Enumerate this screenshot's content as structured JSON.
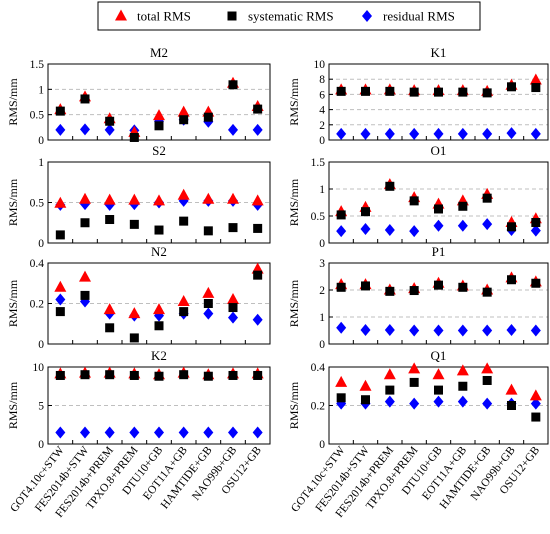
{
  "legend": {
    "placement": "top-center",
    "entries": [
      {
        "name": "total RMS",
        "marker": "triangle",
        "color": "#ff0000"
      },
      {
        "name": "systematic RMS",
        "marker": "square",
        "color": "#000000"
      },
      {
        "name": "residual RMS",
        "marker": "diamond",
        "color": "#0000ff"
      }
    ]
  },
  "ylabel": "RMS/mm",
  "models": [
    "GOT4.10c+STW",
    "FES2014b+STW",
    "FES2014b+PREM",
    "TPXO.8+PREM",
    "DTU10+GB",
    "EOT11A+GB",
    "HAMTIDE+GB",
    "NAO99b+GB",
    "OSU12+GB"
  ],
  "colors": {
    "total": "#ff0000",
    "systematic": "#000000",
    "residual": "#0000ff",
    "grid": "#bfbfbf"
  },
  "chart_data": [
    {
      "type": "scatter",
      "title": "M2",
      "column": "left",
      "row": 0,
      "ylim": [
        0,
        1.5
      ],
      "yticks": [
        "0",
        "0.5",
        "1",
        "1.5"
      ],
      "grid": true,
      "series": [
        {
          "name": "total RMS",
          "values": [
            0.6,
            0.85,
            0.42,
            0.15,
            0.48,
            0.55,
            0.55,
            1.12,
            0.66
          ]
        },
        {
          "name": "systematic RMS",
          "values": [
            0.57,
            0.81,
            0.37,
            0.05,
            0.28,
            0.4,
            0.45,
            1.09,
            0.61
          ]
        },
        {
          "name": "residual RMS",
          "values": [
            0.2,
            0.21,
            0.2,
            0.19,
            0.37,
            0.4,
            0.36,
            0.2,
            0.2
          ]
        }
      ]
    },
    {
      "type": "scatter",
      "title": "K1",
      "column": "right",
      "row": 0,
      "ylim": [
        0,
        10
      ],
      "yticks": [
        "0",
        "2",
        "4",
        "6",
        "8",
        "10"
      ],
      "grid": true,
      "series": [
        {
          "name": "total RMS",
          "values": [
            6.6,
            6.6,
            6.6,
            6.5,
            6.5,
            6.5,
            6.4,
            7.2,
            7.9
          ]
        },
        {
          "name": "systematic RMS",
          "values": [
            6.4,
            6.4,
            6.4,
            6.3,
            6.3,
            6.3,
            6.2,
            7.0,
            6.9
          ]
        },
        {
          "name": "residual RMS",
          "values": [
            0.8,
            0.8,
            0.8,
            0.8,
            0.8,
            0.8,
            0.8,
            0.9,
            0.8
          ]
        }
      ]
    },
    {
      "type": "scatter",
      "title": "S2",
      "column": "left",
      "row": 1,
      "ylim": [
        0,
        1
      ],
      "yticks": [
        "0",
        "0.5",
        "1"
      ],
      "grid": true,
      "series": [
        {
          "name": "total RMS",
          "values": [
            0.49,
            0.54,
            0.53,
            0.53,
            0.52,
            0.59,
            0.54,
            0.54,
            0.52
          ]
        },
        {
          "name": "systematic RMS",
          "values": [
            0.1,
            0.25,
            0.29,
            0.23,
            0.16,
            0.27,
            0.15,
            0.19,
            0.18
          ]
        },
        {
          "name": "residual RMS",
          "values": [
            0.47,
            0.48,
            0.47,
            0.48,
            0.5,
            0.52,
            0.52,
            0.52,
            0.47
          ]
        }
      ]
    },
    {
      "type": "scatter",
      "title": "O1",
      "column": "right",
      "row": 1,
      "ylim": [
        0,
        1.5
      ],
      "yticks": [
        "0",
        "0.5",
        "1",
        "1.5"
      ],
      "grid": true,
      "series": [
        {
          "name": "total RMS",
          "values": [
            0.58,
            0.66,
            1.08,
            0.84,
            0.72,
            0.78,
            0.9,
            0.38,
            0.45
          ]
        },
        {
          "name": "systematic RMS",
          "values": [
            0.52,
            0.58,
            1.05,
            0.78,
            0.63,
            0.68,
            0.83,
            0.3,
            0.38
          ]
        },
        {
          "name": "residual RMS",
          "values": [
            0.22,
            0.26,
            0.24,
            0.22,
            0.32,
            0.32,
            0.35,
            0.24,
            0.23
          ]
        }
      ]
    },
    {
      "type": "scatter",
      "title": "N2",
      "column": "left",
      "row": 2,
      "ylim": [
        0,
        0.4
      ],
      "yticks": [
        "0",
        "0.2",
        "0.4"
      ],
      "grid": true,
      "series": [
        {
          "name": "total RMS",
          "values": [
            0.28,
            0.33,
            0.17,
            0.15,
            0.17,
            0.21,
            0.25,
            0.22,
            0.37
          ]
        },
        {
          "name": "systematic RMS",
          "values": [
            0.16,
            0.24,
            0.08,
            0.03,
            0.09,
            0.16,
            0.2,
            0.18,
            0.34
          ]
        },
        {
          "name": "residual RMS",
          "values": [
            0.22,
            0.21,
            0.15,
            0.14,
            0.14,
            0.15,
            0.15,
            0.13,
            0.12
          ]
        }
      ]
    },
    {
      "type": "scatter",
      "title": "P1",
      "column": "right",
      "row": 2,
      "ylim": [
        0,
        3
      ],
      "yticks": [
        "0",
        "1",
        "2",
        "3"
      ],
      "grid": true,
      "series": [
        {
          "name": "total RMS",
          "values": [
            2.2,
            2.2,
            2.0,
            2.05,
            2.25,
            2.15,
            2.0,
            2.45,
            2.3
          ]
        },
        {
          "name": "systematic RMS",
          "values": [
            2.1,
            2.15,
            1.95,
            1.98,
            2.18,
            2.1,
            1.92,
            2.38,
            2.25
          ]
        },
        {
          "name": "residual RMS",
          "values": [
            0.6,
            0.52,
            0.52,
            0.5,
            0.5,
            0.5,
            0.5,
            0.52,
            0.5
          ]
        }
      ]
    },
    {
      "type": "scatter",
      "title": "K2",
      "column": "left",
      "row": 3,
      "ylim": [
        0,
        10
      ],
      "yticks": [
        "0",
        "5",
        "10"
      ],
      "grid": true,
      "series": [
        {
          "name": "total RMS",
          "values": [
            9.1,
            9.2,
            9.2,
            9.1,
            9.0,
            9.2,
            9.0,
            9.1,
            9.1
          ]
        },
        {
          "name": "systematic RMS",
          "values": [
            8.9,
            9.0,
            9.0,
            8.9,
            8.8,
            9.0,
            8.8,
            8.9,
            8.9
          ]
        },
        {
          "name": "residual RMS",
          "values": [
            1.5,
            1.5,
            1.5,
            1.5,
            1.5,
            1.5,
            1.5,
            1.5,
            1.5
          ]
        }
      ]
    },
    {
      "type": "scatter",
      "title": "Q1",
      "column": "right",
      "row": 3,
      "ylim": [
        0,
        0.4
      ],
      "yticks": [
        "0",
        "0.2",
        "0.4"
      ],
      "grid": true,
      "series": [
        {
          "name": "total RMS",
          "values": [
            0.32,
            0.3,
            0.36,
            0.39,
            0.36,
            0.38,
            0.39,
            0.28,
            0.25
          ]
        },
        {
          "name": "systematic RMS",
          "values": [
            0.24,
            0.23,
            0.28,
            0.32,
            0.28,
            0.3,
            0.33,
            0.2,
            0.14
          ]
        },
        {
          "name": "residual RMS",
          "values": [
            0.21,
            0.21,
            0.22,
            0.21,
            0.22,
            0.22,
            0.21,
            0.21,
            0.21
          ]
        }
      ]
    }
  ]
}
